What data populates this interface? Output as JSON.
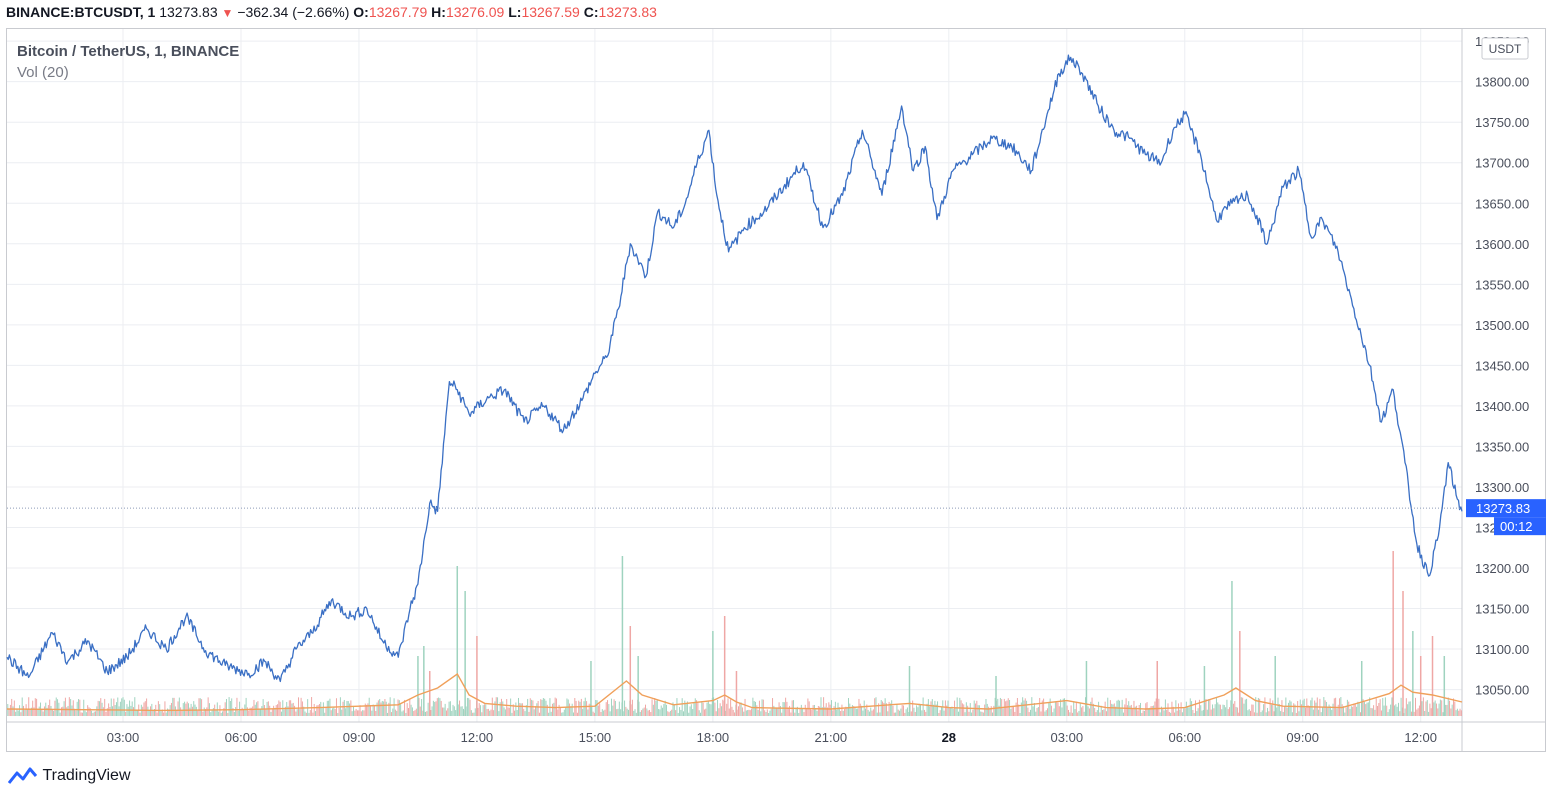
{
  "header": {
    "symbol": "BINANCE:BTCUSDT, 1",
    "last": "13273.83",
    "arrow": "▼",
    "change": "−362.34 (−2.66%)",
    "o_label": "O:",
    "o_value": "13267.79",
    "h_label": "H:",
    "h_value": "13276.09",
    "l_label": "L:",
    "l_value": "13267.59",
    "c_label": "C:",
    "c_value": "13273.83"
  },
  "legend": {
    "title": "Bitcoin / TetherUS, 1, BINANCE",
    "volume": "Vol (20)"
  },
  "brand": {
    "name": "TradingView"
  },
  "colors": {
    "price_line": "#3a6fc4",
    "vol_ma": "#f0a05a",
    "vol_up": "#9fd3bf",
    "vol_down": "#efa7a5",
    "badge": "#2962ff"
  },
  "chart_data": {
    "type": "line",
    "currency_label": "USDT",
    "y_ticks": [
      "13050.00",
      "13100.00",
      "13150.00",
      "13200.00",
      "13250.00",
      "13300.00",
      "13350.00",
      "13400.00",
      "13450.00",
      "13500.00",
      "13550.00",
      "13600.00",
      "13650.00",
      "13700.00",
      "13750.00",
      "13800.00",
      "13850.00"
    ],
    "ylim": [
      13010,
      13865
    ],
    "x_ticks": [
      "03:00",
      "06:00",
      "09:00",
      "12:00",
      "15:00",
      "18:00",
      "21:00",
      "28",
      "03:00",
      "06:00",
      "09:00",
      "12:00"
    ],
    "x_tick_hours": [
      3,
      6,
      9,
      12,
      15,
      18,
      21,
      24,
      27,
      30,
      33,
      36
    ],
    "xlim_hours": [
      0.05,
      37.05
    ],
    "last_price": "13273.83",
    "countdown": "00:12",
    "price_series": {
      "hours": [
        0.05,
        0.6,
        1.2,
        1.6,
        2.1,
        2.6,
        3.1,
        3.6,
        4.1,
        4.6,
        5.1,
        5.6,
        6.2,
        6.6,
        7.0,
        7.4,
        7.8,
        8.3,
        8.8,
        9.2,
        9.6,
        10.0,
        10.3,
        10.5,
        10.8,
        11.0,
        11.3,
        11.5,
        11.8,
        12.3,
        12.7,
        13.2,
        13.7,
        14.2,
        14.7,
        15.0,
        15.3,
        15.6,
        15.9,
        16.3,
        16.6,
        17.0,
        17.3,
        17.6,
        17.9,
        18.1,
        18.4,
        18.8,
        19.3,
        19.8,
        20.3,
        20.8,
        21.3,
        21.8,
        22.3,
        22.8,
        23.1,
        23.4,
        23.7,
        24.1,
        24.6,
        25.1,
        25.6,
        26.1,
        26.5,
        26.8,
        27.1,
        27.4,
        27.8,
        28.2,
        28.6,
        29.0,
        29.4,
        29.7,
        30.0,
        30.4,
        30.8,
        31.2,
        31.6,
        32.1,
        32.5,
        32.9,
        33.2,
        33.5,
        33.9,
        34.3,
        34.7,
        35.0,
        35.3,
        35.6,
        35.9,
        36.2,
        36.45,
        36.7,
        36.9,
        37.05
      ],
      "values": [
        13090,
        13065,
        13120,
        13085,
        13110,
        13072,
        13090,
        13125,
        13100,
        13140,
        13098,
        13080,
        13070,
        13085,
        13060,
        13100,
        13120,
        13160,
        13140,
        13150,
        13110,
        13090,
        13150,
        13180,
        13280,
        13270,
        13430,
        13420,
        13390,
        13410,
        13420,
        13380,
        13400,
        13370,
        13410,
        13440,
        13460,
        13520,
        13600,
        13560,
        13640,
        13620,
        13650,
        13700,
        13740,
        13660,
        13590,
        13620,
        13640,
        13670,
        13700,
        13620,
        13660,
        13740,
        13660,
        13770,
        13690,
        13720,
        13630,
        13690,
        13710,
        13730,
        13720,
        13690,
        13760,
        13810,
        13830,
        13810,
        13770,
        13740,
        13730,
        13710,
        13700,
        13740,
        13760,
        13710,
        13630,
        13650,
        13660,
        13600,
        13670,
        13690,
        13610,
        13630,
        13590,
        13520,
        13450,
        13380,
        13420,
        13330,
        13230,
        13190,
        13240,
        13330,
        13290,
        13270
      ]
    },
    "volume_spikes": [
      {
        "h": 10.5,
        "up": true,
        "v": 120
      },
      {
        "h": 10.65,
        "up": true,
        "v": 140
      },
      {
        "h": 10.8,
        "up": false,
        "v": 90
      },
      {
        "h": 11.5,
        "up": true,
        "v": 300
      },
      {
        "h": 11.7,
        "up": true,
        "v": 250
      },
      {
        "h": 12.0,
        "up": false,
        "v": 160
      },
      {
        "h": 14.9,
        "up": true,
        "v": 110
      },
      {
        "h": 15.7,
        "up": true,
        "v": 320
      },
      {
        "h": 15.9,
        "up": false,
        "v": 180
      },
      {
        "h": 16.1,
        "up": true,
        "v": 120
      },
      {
        "h": 18.0,
        "up": true,
        "v": 170
      },
      {
        "h": 18.3,
        "up": false,
        "v": 200
      },
      {
        "h": 18.6,
        "up": false,
        "v": 90
      },
      {
        "h": 23.0,
        "up": true,
        "v": 100
      },
      {
        "h": 25.2,
        "up": true,
        "v": 80
      },
      {
        "h": 27.5,
        "up": true,
        "v": 110
      },
      {
        "h": 29.3,
        "up": false,
        "v": 110
      },
      {
        "h": 30.5,
        "up": true,
        "v": 100
      },
      {
        "h": 31.2,
        "up": true,
        "v": 270
      },
      {
        "h": 31.4,
        "up": false,
        "v": 170
      },
      {
        "h": 32.3,
        "up": true,
        "v": 120
      },
      {
        "h": 34.5,
        "up": true,
        "v": 110
      },
      {
        "h": 35.3,
        "up": false,
        "v": 330
      },
      {
        "h": 35.55,
        "up": false,
        "v": 250
      },
      {
        "h": 35.8,
        "up": true,
        "v": 170
      },
      {
        "h": 36.0,
        "up": false,
        "v": 120
      },
      {
        "h": 36.3,
        "up": false,
        "v": 160
      },
      {
        "h": 36.6,
        "up": true,
        "v": 120
      }
    ],
    "volume_ma": {
      "hours": [
        0.05,
        2,
        4,
        6,
        8,
        9,
        10,
        10.5,
        11,
        11.5,
        11.8,
        12.2,
        13,
        14,
        15,
        15.8,
        16.2,
        17,
        18,
        18.3,
        18.6,
        19,
        21,
        23,
        24,
        25,
        27,
        28,
        29,
        30,
        31,
        31.3,
        31.8,
        32.5,
        34,
        34.5,
        35.2,
        35.5,
        35.8,
        36.3,
        37.05
      ],
      "values": [
        10,
        9,
        8,
        9,
        12,
        14,
        16,
        30,
        40,
        60,
        30,
        18,
        14,
        12,
        14,
        50,
        30,
        16,
        22,
        30,
        20,
        12,
        10,
        18,
        12,
        10,
        22,
        12,
        10,
        12,
        30,
        40,
        22,
        14,
        12,
        20,
        32,
        44,
        34,
        30,
        20
      ]
    }
  }
}
